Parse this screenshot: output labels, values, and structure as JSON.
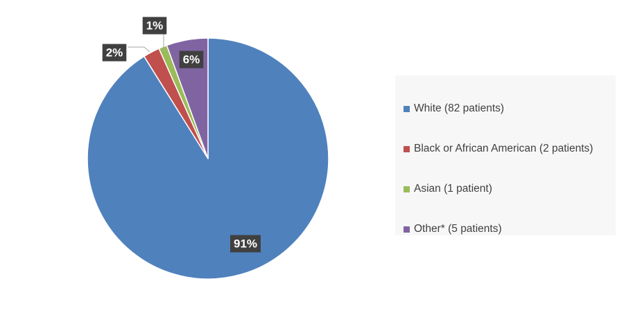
{
  "chart_data": {
    "type": "pie",
    "title": "",
    "slices": [
      {
        "name": "White (82 patients)",
        "value": 82,
        "percent_label": "91%",
        "color": "#4f81bd"
      },
      {
        "name": "Black or African American (2 patients)",
        "value": 2,
        "percent_label": "2%",
        "color": "#c0504d"
      },
      {
        "name": "Asian (1 patient)",
        "value": 1,
        "percent_label": "1%",
        "color": "#9bbb59"
      },
      {
        "name": "Other* (5 patients)",
        "value": 5,
        "percent_label": "6%",
        "color": "#8064a2"
      }
    ],
    "start_angle_deg": 0,
    "direction": "clockwise",
    "legend_position": "right",
    "data_label_style": {
      "box_color": "#404040",
      "text_color": "#ffffff"
    }
  }
}
